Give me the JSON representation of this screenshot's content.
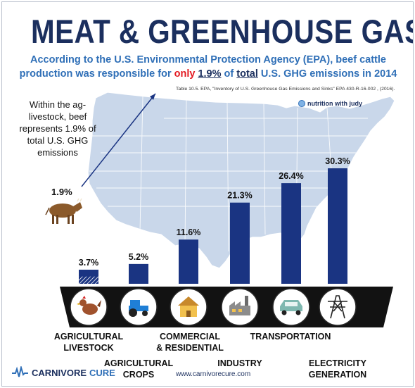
{
  "header": {
    "title": "MEAT & GREENHOUSE GAS",
    "subtitle_line1": "According to the U.S. Environmental Protection Agency (EPA), beef cattle",
    "subtitle_line2_pre": "production was responsible for ",
    "subtitle_line2_only": "only",
    "subtitle_line2_pct": "1.9%",
    "subtitle_line2_of": " of ",
    "subtitle_line2_total": "total",
    "subtitle_line2_post": " U.S. GHG emissions in 2014",
    "source": "Table 10.5. EPA, \"Inventory of U.S. Greenhouse Gas Emissions and Sinks\" EPA 430-R-16-002 , (2016).",
    "credit": "nutrition with judy"
  },
  "annotation": {
    "beef_note": "Within the ag-livestock, beef represents 1.9% of total U.S. GHG emissions",
    "beef_value": "1.9%"
  },
  "footer": {
    "logo_part1": "CARNIVORE",
    "logo_part2": "CURE",
    "url": "www.carnivorecure.com"
  },
  "colors": {
    "bar": "#1a3482",
    "title": "#1b2f5e",
    "accent_blue": "#2f6fb7",
    "highlight_red": "#e31b23",
    "map_fill": "#c9d7ea",
    "band": "#121212"
  },
  "icons": [
    "chicken-icon",
    "tractor-icon",
    "house-icon",
    "factory-icon",
    "car-icon",
    "power-tower-icon"
  ],
  "chart_data": {
    "type": "bar",
    "categories": [
      "AGRICULTURAL LIVESTOCK",
      "AGRICULTURAL CROPS",
      "COMMERCIAL & RESIDENTIAL",
      "INDUSTRY",
      "TRANSPORTATION",
      "ELECTRICITY GENERATION"
    ],
    "values": [
      3.7,
      5.2,
      11.6,
      21.3,
      26.4,
      30.3
    ],
    "value_labels": [
      "3.7%",
      "5.2%",
      "11.6%",
      "21.3%",
      "26.4%",
      "30.3%"
    ],
    "highlight": {
      "category": "AGRICULTURAL LIVESTOCK",
      "portion": 1.9,
      "style": "hatched"
    },
    "unit": "% of total U.S. GHG emissions",
    "ylim": [
      0,
      31
    ],
    "grid": false,
    "legend": "none"
  }
}
